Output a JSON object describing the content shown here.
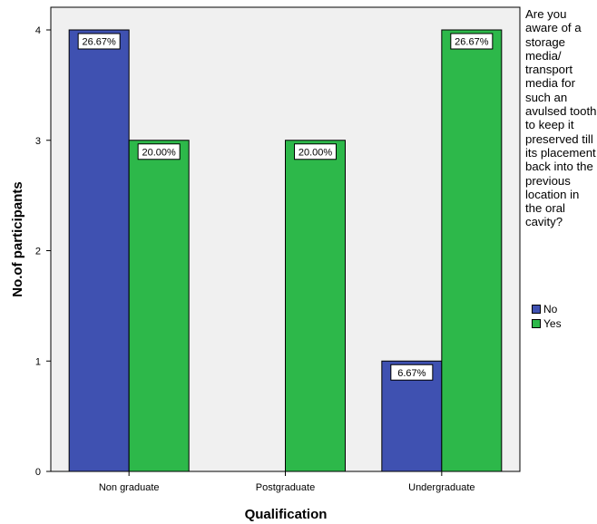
{
  "chart_data": {
    "type": "bar",
    "categories": [
      "Non graduate",
      "Postgraduate",
      "Undergraduate"
    ],
    "series": [
      {
        "name": "No",
        "color": "#3f51b1",
        "values": [
          4,
          0,
          1
        ],
        "labels": [
          "26.67%",
          "",
          "6.67%"
        ]
      },
      {
        "name": "Yes",
        "color": "#2db84a",
        "values": [
          3,
          3,
          4
        ],
        "labels": [
          "20.00%",
          "20.00%",
          "26.67%"
        ]
      }
    ],
    "xlabel": "Qualification",
    "ylabel": "No.of participants",
    "ylim": [
      0,
      4
    ],
    "yticks": [
      "0",
      "1",
      "2",
      "3",
      "4"
    ],
    "legend_title": "Are you aware of a storage media/ transport media for such an avulsed tooth to keep it preserved till its placement back into the previous location in the oral cavity?",
    "legend_position": "right",
    "plot_background": "#f0f0f0",
    "grid": false
  }
}
